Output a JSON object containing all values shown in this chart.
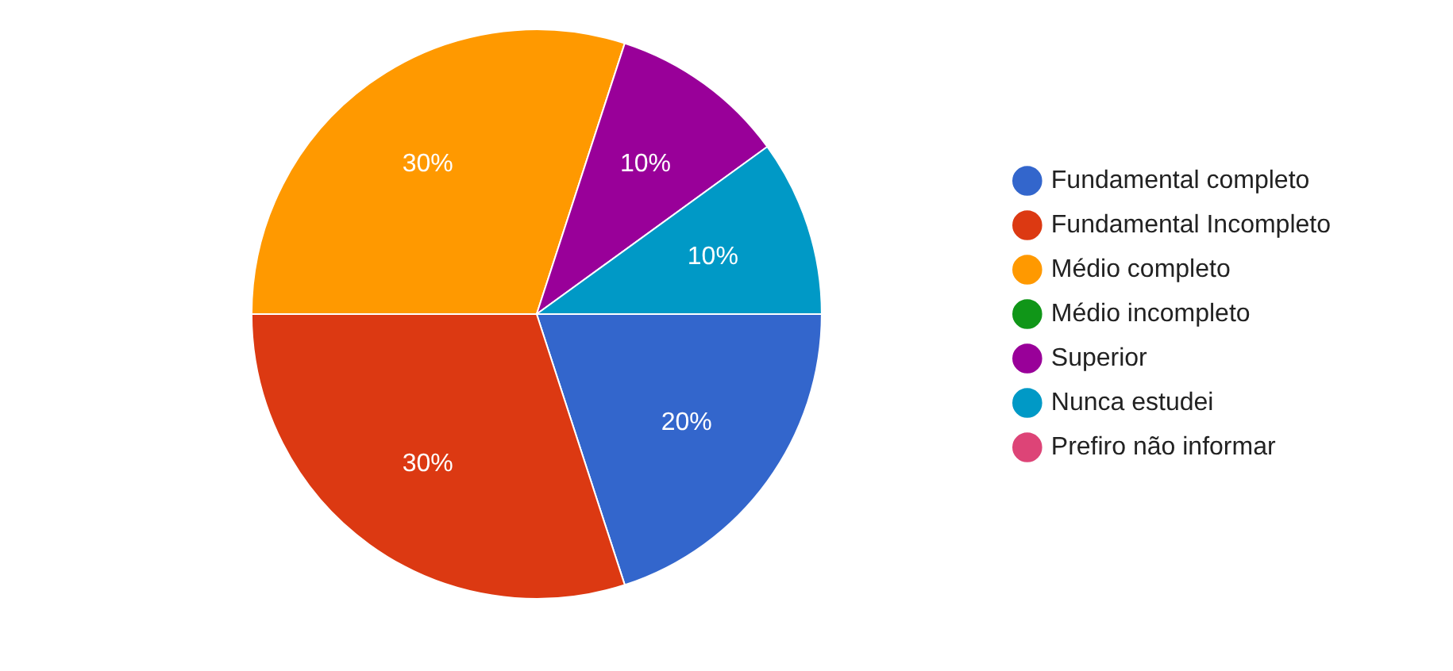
{
  "chart_data": {
    "type": "pie",
    "categories": [
      "Fundamental completo",
      "Fundamental Incompleto",
      "Médio completo",
      "Médio incompleto",
      "Superior",
      "Nunca estudei",
      "Prefiro não informar"
    ],
    "values": [
      20,
      30,
      30,
      0,
      10,
      10,
      0
    ],
    "colors": [
      "#3366cc",
      "#dc3912",
      "#ff9900",
      "#109618",
      "#990099",
      "#0099c6",
      "#dd4477"
    ],
    "value_labels": [
      "20%",
      "30%",
      "30%",
      null,
      "10%",
      "10%",
      null
    ],
    "legend": "right"
  }
}
